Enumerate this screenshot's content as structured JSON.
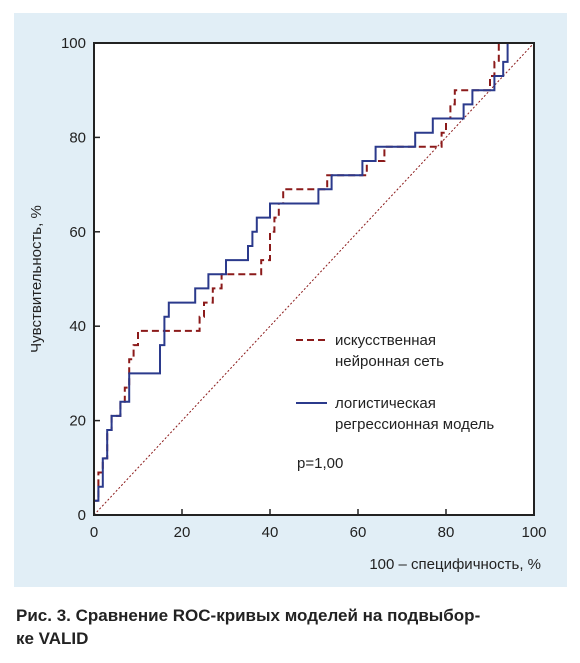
{
  "chart_data": {
    "type": "line",
    "xlabel": "100 – специфичность, %",
    "ylabel": "Чувствительность, %",
    "xlim": [
      0,
      100
    ],
    "ylim": [
      0,
      100
    ],
    "x_ticks": [
      0,
      20,
      40,
      60,
      80,
      100
    ],
    "y_ticks": [
      0,
      20,
      40,
      60,
      80,
      100
    ],
    "grid": false,
    "annotation": "p=1,00",
    "series": [
      {
        "name": "искусственная нейронная сеть",
        "name_lines": [
          "искусственная",
          "нейронная сеть"
        ],
        "color": "#8b1a1a",
        "dash": "dashed",
        "points": [
          [
            0,
            0
          ],
          [
            0,
            3
          ],
          [
            1,
            3
          ],
          [
            1,
            9
          ],
          [
            2,
            9
          ],
          [
            2,
            12
          ],
          [
            3,
            12
          ],
          [
            3,
            18
          ],
          [
            4,
            18
          ],
          [
            4,
            21
          ],
          [
            6,
            21
          ],
          [
            6,
            24
          ],
          [
            7,
            24
          ],
          [
            7,
            27
          ],
          [
            8,
            27
          ],
          [
            8,
            30
          ],
          [
            8,
            33
          ],
          [
            9,
            33
          ],
          [
            9,
            36
          ],
          [
            10,
            36
          ],
          [
            10,
            39
          ],
          [
            24,
            39
          ],
          [
            24,
            42
          ],
          [
            25,
            42
          ],
          [
            25,
            45
          ],
          [
            27,
            45
          ],
          [
            27,
            48
          ],
          [
            29,
            48
          ],
          [
            29,
            51
          ],
          [
            38,
            51
          ],
          [
            38,
            54
          ],
          [
            40,
            54
          ],
          [
            40,
            57
          ],
          [
            40,
            60
          ],
          [
            41,
            60
          ],
          [
            41,
            63
          ],
          [
            42,
            63
          ],
          [
            42,
            66
          ],
          [
            43,
            66
          ],
          [
            43,
            69
          ],
          [
            53,
            69
          ],
          [
            53,
            72
          ],
          [
            62,
            72
          ],
          [
            62,
            75
          ],
          [
            66,
            75
          ],
          [
            66,
            78
          ],
          [
            79,
            78
          ],
          [
            79,
            81
          ],
          [
            80,
            81
          ],
          [
            80,
            84
          ],
          [
            81,
            84
          ],
          [
            81,
            87
          ],
          [
            82,
            87
          ],
          [
            82,
            90
          ],
          [
            90,
            90
          ],
          [
            90,
            93
          ],
          [
            91,
            93
          ],
          [
            91,
            96
          ],
          [
            92,
            96
          ],
          [
            92,
            100
          ],
          [
            100,
            100
          ]
        ]
      },
      {
        "name": "логистическая регрессионная модель",
        "name_lines": [
          "логистическая",
          "регрессионная модель"
        ],
        "color": "#2b3a8c",
        "dash": "solid",
        "points": [
          [
            0,
            0
          ],
          [
            0,
            3
          ],
          [
            1,
            3
          ],
          [
            1,
            6
          ],
          [
            2,
            6
          ],
          [
            2,
            12
          ],
          [
            3,
            12
          ],
          [
            3,
            18
          ],
          [
            4,
            18
          ],
          [
            4,
            21
          ],
          [
            6,
            21
          ],
          [
            6,
            24
          ],
          [
            8,
            24
          ],
          [
            8,
            27
          ],
          [
            8,
            30
          ],
          [
            15,
            30
          ],
          [
            15,
            36
          ],
          [
            16,
            36
          ],
          [
            16,
            42
          ],
          [
            17,
            42
          ],
          [
            17,
            45
          ],
          [
            23,
            45
          ],
          [
            23,
            48
          ],
          [
            26,
            48
          ],
          [
            26,
            51
          ],
          [
            30,
            51
          ],
          [
            30,
            54
          ],
          [
            35,
            54
          ],
          [
            35,
            57
          ],
          [
            36,
            57
          ],
          [
            36,
            60
          ],
          [
            37,
            60
          ],
          [
            37,
            63
          ],
          [
            40,
            63
          ],
          [
            40,
            66
          ],
          [
            51,
            66
          ],
          [
            51,
            69
          ],
          [
            54,
            69
          ],
          [
            54,
            72
          ],
          [
            61,
            72
          ],
          [
            61,
            75
          ],
          [
            64,
            75
          ],
          [
            64,
            78
          ],
          [
            73,
            78
          ],
          [
            73,
            81
          ],
          [
            77,
            81
          ],
          [
            77,
            84
          ],
          [
            84,
            84
          ],
          [
            84,
            87
          ],
          [
            86,
            87
          ],
          [
            86,
            90
          ],
          [
            91,
            90
          ],
          [
            91,
            93
          ],
          [
            93,
            93
          ],
          [
            93,
            96
          ],
          [
            94,
            96
          ],
          [
            94,
            100
          ],
          [
            100,
            100
          ]
        ]
      },
      {
        "name": "",
        "color": "#8b1a1a",
        "dash": "dotted",
        "points": [
          [
            0,
            0
          ],
          [
            100,
            100
          ]
        ]
      }
    ]
  },
  "caption": {
    "line1": "Рис. 3. Сравнение ROC-кривых моделей на подвыбор-",
    "line2": "ке VALID"
  }
}
